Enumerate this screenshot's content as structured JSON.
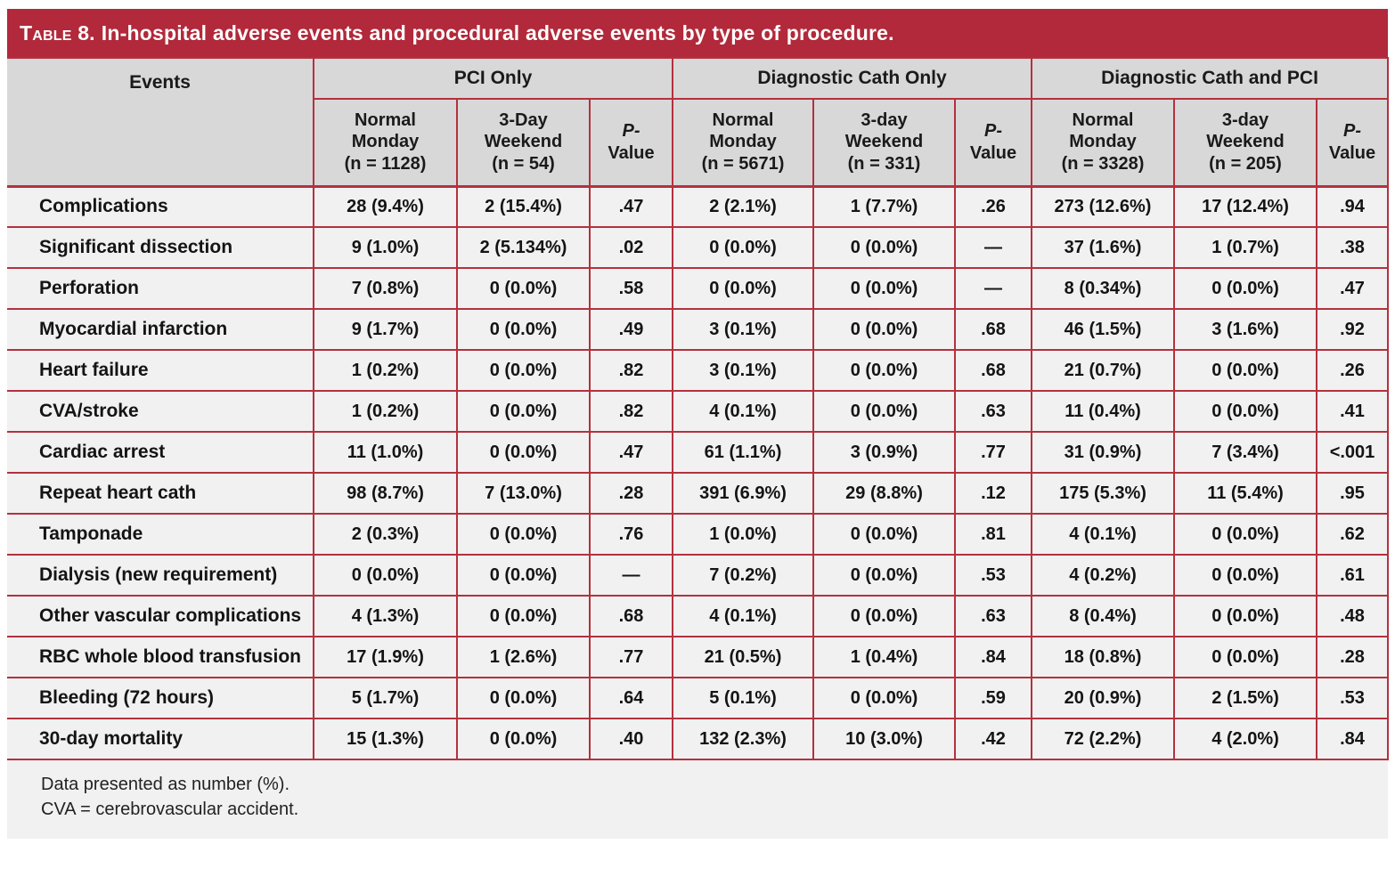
{
  "title": {
    "prefix": "Table 8.",
    "text": "In-hospital adverse events and procedural adverse events by type of procedure."
  },
  "colors": {
    "accent_red": "#b1293a",
    "grid_red": "#b3313e",
    "header_gray": "#d9d8d8",
    "row_bg": "#f2f1f1",
    "title_text": "#ffffff",
    "body_text": "#1a1a1a"
  },
  "table": {
    "events_header": "Events",
    "groups": [
      {
        "label": "PCI Only",
        "subheaders": [
          "Normal\nMonday\n(n = 1128)",
          "3-Day\nWeekend\n(n = 54)"
        ],
        "p_label": {
          "italic": "P-\n",
          "rest": "Value"
        }
      },
      {
        "label": "Diagnostic Cath Only",
        "subheaders": [
          "Normal\nMonday\n(n = 5671)",
          "3-day\nWeekend\n(n = 331)"
        ],
        "p_label": {
          "italic": "P-\n",
          "rest": "Value"
        }
      },
      {
        "label": "Diagnostic Cath and PCI",
        "subheaders": [
          "Normal\nMonday\n(n = 3328)",
          "3-day\nWeekend\n(n = 205)"
        ],
        "p_label": {
          "italic": "P-\n",
          "rest": "Value"
        }
      }
    ],
    "rows": [
      {
        "label": "Complications",
        "cells": [
          "28 (9.4%)",
          "2 (15.4%)",
          ".47",
          "2 (2.1%)",
          "1 (7.7%)",
          ".26",
          "273 (12.6%)",
          "17 (12.4%)",
          ".94"
        ]
      },
      {
        "label": "Significant dissection",
        "cells": [
          "9 (1.0%)",
          "2 (5.134%)",
          ".02",
          "0 (0.0%)",
          "0 (0.0%)",
          "—",
          "37 (1.6%)",
          "1 (0.7%)",
          ".38"
        ]
      },
      {
        "label": "Perforation",
        "cells": [
          "7 (0.8%)",
          "0 (0.0%)",
          ".58",
          "0 (0.0%)",
          "0 (0.0%)",
          "—",
          "8 (0.34%)",
          "0 (0.0%)",
          ".47"
        ]
      },
      {
        "label": "Myocardial infarction",
        "cells": [
          "9 (1.7%)",
          "0 (0.0%)",
          ".49",
          "3 (0.1%)",
          "0 (0.0%)",
          ".68",
          "46 (1.5%)",
          "3 (1.6%)",
          ".92"
        ]
      },
      {
        "label": "Heart failure",
        "cells": [
          "1 (0.2%)",
          "0 (0.0%)",
          ".82",
          "3 (0.1%)",
          "0 (0.0%)",
          ".68",
          "21 (0.7%)",
          "0 (0.0%)",
          ".26"
        ]
      },
      {
        "label": "CVA/stroke",
        "cells": [
          "1 (0.2%)",
          "0 (0.0%)",
          ".82",
          "4 (0.1%)",
          "0 (0.0%)",
          ".63",
          "11 (0.4%)",
          "0 (0.0%)",
          ".41"
        ]
      },
      {
        "label": "Cardiac arrest",
        "cells": [
          "11 (1.0%)",
          "0 (0.0%)",
          ".47",
          "61 (1.1%)",
          "3 (0.9%)",
          ".77",
          "31 (0.9%)",
          "7 (3.4%)",
          "<.001"
        ]
      },
      {
        "label": "Repeat heart cath",
        "cells": [
          "98 (8.7%)",
          "7 (13.0%)",
          ".28",
          "391 (6.9%)",
          "29 (8.8%)",
          ".12",
          "175 (5.3%)",
          "11 (5.4%)",
          ".95"
        ]
      },
      {
        "label": "Tamponade",
        "cells": [
          "2 (0.3%)",
          "0 (0.0%)",
          ".76",
          "1 (0.0%)",
          "0 (0.0%)",
          ".81",
          "4 (0.1%)",
          "0 (0.0%)",
          ".62"
        ]
      },
      {
        "label": "Dialysis (new requirement)",
        "cells": [
          "0 (0.0%)",
          "0 (0.0%)",
          "—",
          "7 (0.2%)",
          "0 (0.0%)",
          ".53",
          "4 (0.2%)",
          "0 (0.0%)",
          ".61"
        ]
      },
      {
        "label": "Other vascular complications",
        "cells": [
          "4 (1.3%)",
          "0 (0.0%)",
          ".68",
          "4 (0.1%)",
          "0 (0.0%)",
          ".63",
          "8 (0.4%)",
          "0 (0.0%)",
          ".48"
        ]
      },
      {
        "label": "RBC whole blood transfusion",
        "cells": [
          "17 (1.9%)",
          "1 (2.6%)",
          ".77",
          "21 (0.5%)",
          "1 (0.4%)",
          ".84",
          "18 (0.8%)",
          "0 (0.0%)",
          ".28"
        ]
      },
      {
        "label": "Bleeding (72 hours)",
        "cells": [
          "5 (1.7%)",
          "0 (0.0%)",
          ".64",
          "5 (0.1%)",
          "0 (0.0%)",
          ".59",
          "20 (0.9%)",
          "2 (1.5%)",
          ".53"
        ]
      },
      {
        "label": "30-day mortality",
        "cells": [
          "15 (1.3%)",
          "0 (0.0%)",
          ".40",
          "132 (2.3%)",
          "10 (3.0%)",
          ".42",
          "72 (2.2%)",
          "4 (2.0%)",
          ".84"
        ]
      }
    ]
  },
  "footnotes": [
    "Data presented as number (%).",
    "CVA = cerebrovascular accident."
  ]
}
